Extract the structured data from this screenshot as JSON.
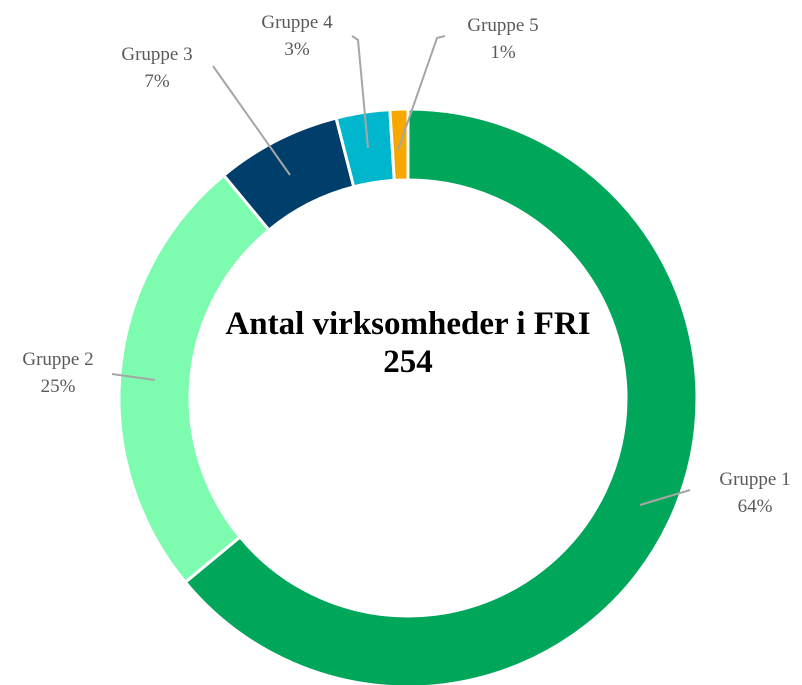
{
  "chart_data": {
    "type": "donut",
    "title": "Antal virksomheder i FRI",
    "center_value": 254,
    "categories": [
      "Gruppe 1",
      "Gruppe 2",
      "Gruppe 3",
      "Gruppe 4",
      "Gruppe 5"
    ],
    "values": [
      64,
      25,
      7,
      3,
      1
    ],
    "value_labels": [
      "64%",
      "25%",
      "7%",
      "3%",
      "1%"
    ],
    "colors": [
      "#00a65a",
      "#7dfcb0",
      "#003f6b",
      "#00b6cc",
      "#f7a800"
    ]
  }
}
